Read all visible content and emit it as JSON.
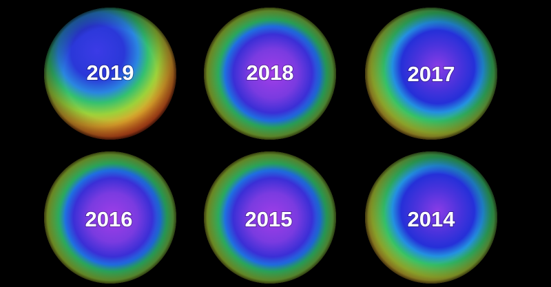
{
  "globes": [
    "2019",
    "2018",
    "2017",
    "2016",
    "2015",
    "2014"
  ]
}
